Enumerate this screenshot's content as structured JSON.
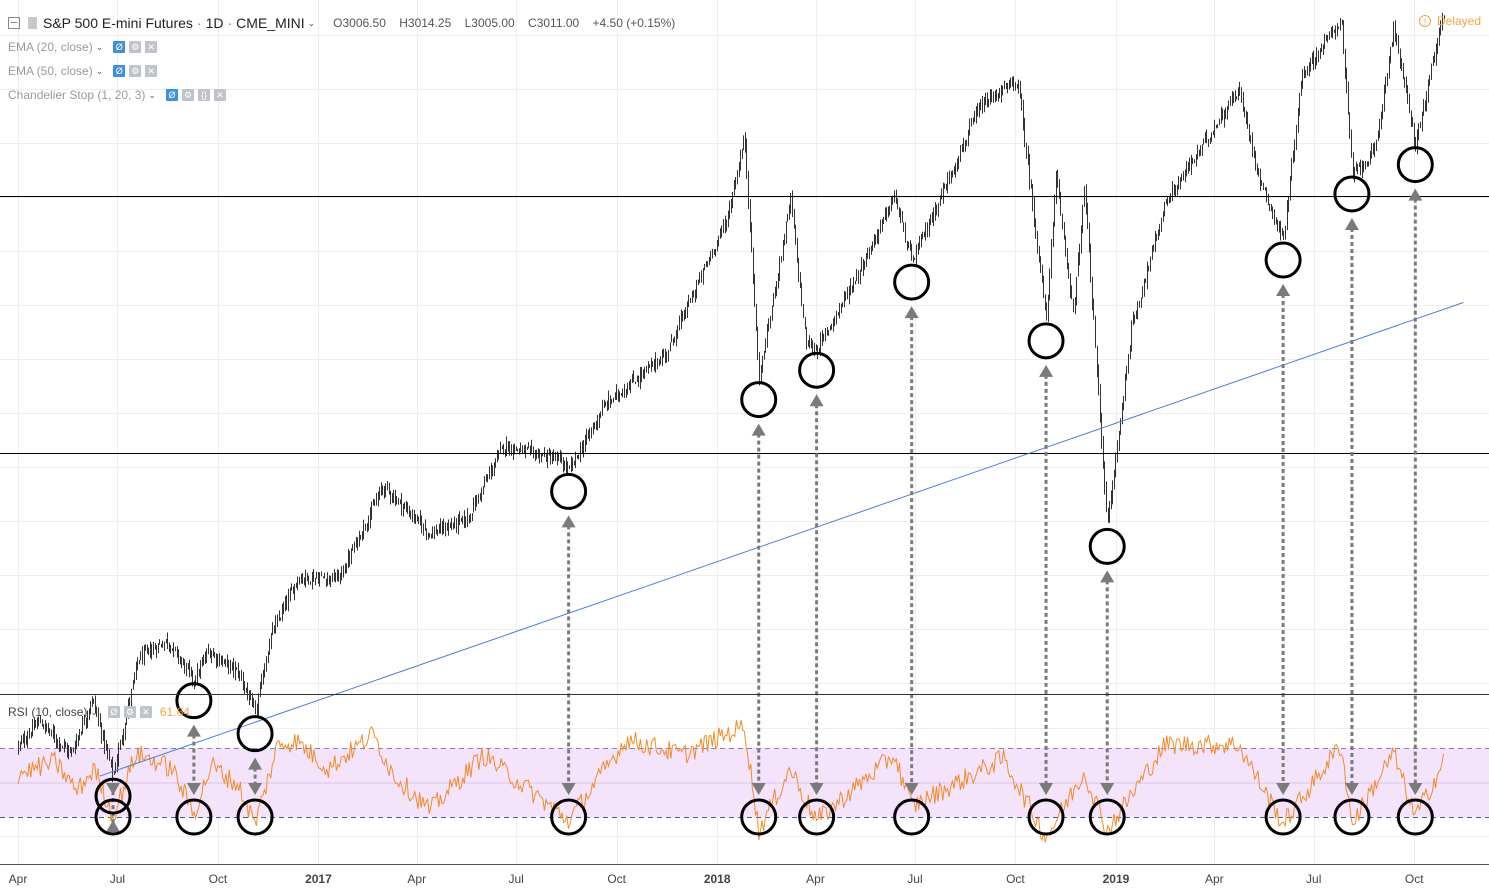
{
  "header": {
    "symbol": "S&P 500 E-mini Futures",
    "interval": "1D",
    "exchange": "CME_MINI",
    "open": "O3006.50",
    "high": "H3014.25",
    "low": "L3005.00",
    "close": "C3011.00",
    "change": "+4.50 (+0.15%)",
    "delayed": "Delayed"
  },
  "indicators": [
    {
      "label": "EMA (20, close)"
    },
    {
      "label": "EMA (50, close)"
    },
    {
      "label": "Chandelier Stop (1, 20, 3)"
    }
  ],
  "rsi": {
    "label": "RSI (10, close)",
    "value": "61.64"
  },
  "colors": {
    "rsi_line": "#f28c28",
    "rsi_band": "#f3e3fb",
    "trendline": "#4a7fd4",
    "arrow": "#7a7a7a",
    "circle": "#000000",
    "candles": "#333333"
  },
  "chart_data": [
    {
      "type": "candlestick",
      "x_tick_labels": [
        "Apr",
        "Jul",
        "Oct",
        "2017",
        "Apr",
        "Jul",
        "Oct",
        "2018",
        "Apr",
        "Jul",
        "Oct",
        "2019",
        "Apr",
        "Jul",
        "Oct"
      ],
      "price_path": [
        {
          "date": "2016-04-01",
          "price": 2040
        },
        {
          "date": "2016-04-20",
          "price": 2075
        },
        {
          "date": "2016-05-19",
          "price": 2030
        },
        {
          "date": "2016-06-08",
          "price": 2105
        },
        {
          "date": "2016-06-27",
          "price": 2000
        },
        {
          "date": "2016-07-20",
          "price": 2160
        },
        {
          "date": "2016-08-15",
          "price": 2185
        },
        {
          "date": "2016-09-09",
          "price": 2130
        },
        {
          "date": "2016-09-22",
          "price": 2170
        },
        {
          "date": "2016-10-20",
          "price": 2140
        },
        {
          "date": "2016-11-04",
          "price": 2085
        },
        {
          "date": "2016-11-18",
          "price": 2190
        },
        {
          "date": "2016-12-13",
          "price": 2270
        },
        {
          "date": "2017-01-20",
          "price": 2270
        },
        {
          "date": "2017-03-01",
          "price": 2395
        },
        {
          "date": "2017-04-13",
          "price": 2330
        },
        {
          "date": "2017-05-17",
          "price": 2350
        },
        {
          "date": "2017-06-19",
          "price": 2450
        },
        {
          "date": "2017-08-10",
          "price": 2430
        },
        {
          "date": "2017-08-18",
          "price": 2415
        },
        {
          "date": "2017-09-20",
          "price": 2505
        },
        {
          "date": "2017-11-15",
          "price": 2575
        },
        {
          "date": "2018-01-10",
          "price": 2760
        },
        {
          "date": "2018-01-26",
          "price": 2870
        },
        {
          "date": "2018-02-08",
          "price": 2540
        },
        {
          "date": "2018-03-09",
          "price": 2785
        },
        {
          "date": "2018-03-23",
          "price": 2590
        },
        {
          "date": "2018-04-02",
          "price": 2580
        },
        {
          "date": "2018-05-15",
          "price": 2700
        },
        {
          "date": "2018-06-12",
          "price": 2790
        },
        {
          "date": "2018-06-28",
          "price": 2700
        },
        {
          "date": "2018-08-29",
          "price": 2910
        },
        {
          "date": "2018-09-20",
          "price": 2935
        },
        {
          "date": "2018-10-03",
          "price": 2945
        },
        {
          "date": "2018-10-29",
          "price": 2620
        },
        {
          "date": "2018-11-07",
          "price": 2815
        },
        {
          "date": "2018-11-23",
          "price": 2630
        },
        {
          "date": "2018-12-03",
          "price": 2800
        },
        {
          "date": "2018-12-24",
          "price": 2340
        },
        {
          "date": "2019-01-15",
          "price": 2610
        },
        {
          "date": "2019-02-15",
          "price": 2780
        },
        {
          "date": "2019-04-23",
          "price": 2935
        },
        {
          "date": "2019-05-13",
          "price": 2810
        },
        {
          "date": "2019-06-03",
          "price": 2730
        },
        {
          "date": "2019-06-20",
          "price": 2955
        },
        {
          "date": "2019-07-26",
          "price": 3030
        },
        {
          "date": "2019-08-05",
          "price": 2820
        },
        {
          "date": "2019-08-26",
          "price": 2850
        },
        {
          "date": "2019-09-12",
          "price": 3020
        },
        {
          "date": "2019-10-02",
          "price": 2860
        },
        {
          "date": "2019-10-28",
          "price": 3040
        }
      ],
      "horizontal_lines": [
        2790,
        2440
      ],
      "trendline": [
        {
          "date": "2016-06-15",
          "price": 2000
        },
        {
          "date": "2019-11-15",
          "price": 2645
        }
      ],
      "marked_lows": [
        "2016-06-27",
        "2016-09-09",
        "2016-11-04",
        "2017-08-18",
        "2018-02-08",
        "2018-04-02",
        "2018-06-28",
        "2018-10-29",
        "2018-12-24",
        "2019-06-03",
        "2019-08-05",
        "2019-10-02"
      ]
    },
    {
      "type": "line",
      "name": "RSI (10, close)",
      "upper_band": 70,
      "lower_band": 30,
      "path": [
        {
          "date": "2016-04-01",
          "value": 55
        },
        {
          "date": "2016-05-05",
          "value": 62
        },
        {
          "date": "2016-05-25",
          "value": 45
        },
        {
          "date": "2016-06-10",
          "value": 58
        },
        {
          "date": "2016-06-27",
          "value": 30
        },
        {
          "date": "2016-07-18",
          "value": 67
        },
        {
          "date": "2016-08-20",
          "value": 58
        },
        {
          "date": "2016-09-09",
          "value": 32
        },
        {
          "date": "2016-09-25",
          "value": 60
        },
        {
          "date": "2016-10-20",
          "value": 48
        },
        {
          "date": "2016-11-04",
          "value": 26
        },
        {
          "date": "2016-11-25",
          "value": 72
        },
        {
          "date": "2016-12-12",
          "value": 74
        },
        {
          "date": "2017-01-10",
          "value": 58
        },
        {
          "date": "2017-02-20",
          "value": 78
        },
        {
          "date": "2017-03-10",
          "value": 55
        },
        {
          "date": "2017-04-13",
          "value": 34
        },
        {
          "date": "2017-06-01",
          "value": 66
        },
        {
          "date": "2017-08-18",
          "value": 28
        },
        {
          "date": "2017-10-10",
          "value": 75
        },
        {
          "date": "2017-12-01",
          "value": 66
        },
        {
          "date": "2018-01-26",
          "value": 83
        },
        {
          "date": "2018-02-08",
          "value": 22
        },
        {
          "date": "2018-03-09",
          "value": 58
        },
        {
          "date": "2018-04-02",
          "value": 28
        },
        {
          "date": "2018-06-12",
          "value": 66
        },
        {
          "date": "2018-06-28",
          "value": 36
        },
        {
          "date": "2018-09-20",
          "value": 64
        },
        {
          "date": "2018-10-29",
          "value": 18
        },
        {
          "date": "2018-12-03",
          "value": 56
        },
        {
          "date": "2018-12-24",
          "value": 22
        },
        {
          "date": "2019-02-15",
          "value": 72
        },
        {
          "date": "2019-04-23",
          "value": 72
        },
        {
          "date": "2019-06-03",
          "value": 26
        },
        {
          "date": "2019-07-26",
          "value": 72
        },
        {
          "date": "2019-08-05",
          "value": 26
        },
        {
          "date": "2019-09-12",
          "value": 67
        },
        {
          "date": "2019-10-02",
          "value": 30
        },
        {
          "date": "2019-10-28",
          "value": 61.64
        }
      ]
    }
  ]
}
